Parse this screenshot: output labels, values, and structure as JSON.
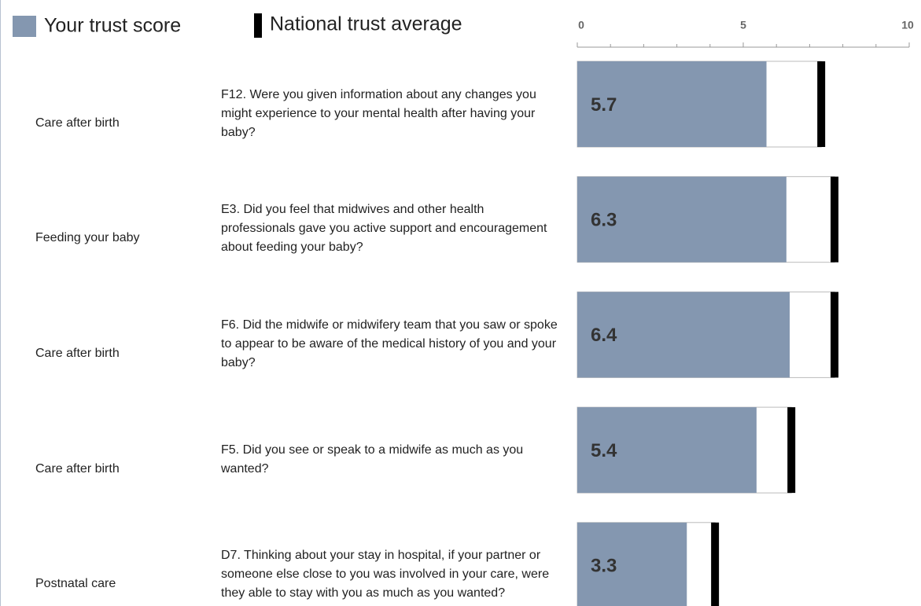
{
  "chart_data": {
    "type": "bar",
    "orientation": "horizontal",
    "sections": [
      "Care after birth",
      "Feeding your baby",
      "Care after birth",
      "Care after birth",
      "Postnatal care"
    ],
    "categories": [
      "F12. Were you given information about any changes you might experience to your mental health after having your baby?",
      "E3. Did you feel that midwives and other health professionals gave you active support and encouragement about feeding your baby?",
      "F6. Did the midwife or midwifery team that you saw or spoke to appear to be aware of the medical history of you and your baby?",
      "F5. Did you see or speak to a midwife as much as you wanted?",
      "D7. Thinking about your stay in hospital, if your partner or someone else close to you was involved in your care, were they able to stay with you as much as you wanted?"
    ],
    "series": [
      {
        "name": "Your trust score",
        "color": "#8497b0",
        "values": [
          5.7,
          6.3,
          6.4,
          5.4,
          3.3
        ]
      },
      {
        "name": "National trust average",
        "color": "#000000",
        "values": [
          7.35,
          7.75,
          7.75,
          6.45,
          4.15
        ]
      }
    ],
    "xlim": [
      0,
      10
    ],
    "xticks": [
      0,
      5,
      10
    ],
    "xminorticks": [
      1,
      2,
      3,
      4,
      6,
      7,
      8,
      9
    ],
    "legend": "top-left"
  }
}
